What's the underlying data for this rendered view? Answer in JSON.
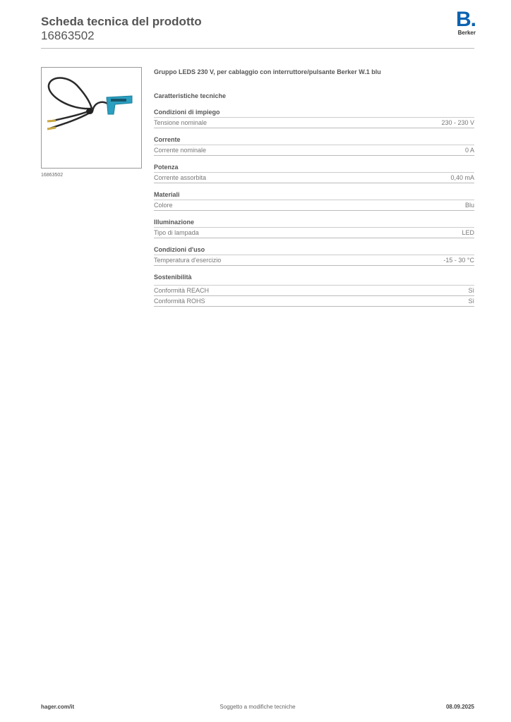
{
  "header": {
    "title": "Scheda tecnica del prodotto",
    "code": "16863502",
    "logo_letter": "B.",
    "logo_name": "Berker",
    "brand_color": "#0a62b0"
  },
  "image": {
    "caption": "16863502"
  },
  "product_title": "Gruppo LEDS 230 V, per cablaggio con interruttore/pulsante Berker W.1 blu",
  "section_title": "Caratteristiche tecniche",
  "groups": [
    {
      "heading": "Condizioni di impiego",
      "rows": [
        {
          "label": "Tensione nominale",
          "value": "230 - 230 V"
        }
      ]
    },
    {
      "heading": "Corrente",
      "rows": [
        {
          "label": "Corrente nominale",
          "value": "0 A"
        }
      ]
    },
    {
      "heading": "Potenza",
      "rows": [
        {
          "label": "Corrente assorbita",
          "value": "0,40 mA"
        }
      ]
    },
    {
      "heading": "Materiali",
      "rows": [
        {
          "label": "Colore",
          "value": "Blu"
        }
      ]
    },
    {
      "heading": "Illuminazione",
      "rows": [
        {
          "label": "Tipo di lampada",
          "value": "LED"
        }
      ]
    },
    {
      "heading": "Condizioni d'uso",
      "rows": [
        {
          "label": "Temperatura d'esercizio",
          "value": "-15 - 30 °C"
        }
      ]
    },
    {
      "heading": "Sostenibilità",
      "rows": [
        {
          "label": "Conformità REACH",
          "value": "Sì"
        },
        {
          "label": "Conformità ROHS",
          "value": "Sì"
        }
      ]
    }
  ],
  "footer": {
    "left": "hager.com/it",
    "center": "Soggetto a modifiche tecniche",
    "right": "08.09.2025"
  }
}
